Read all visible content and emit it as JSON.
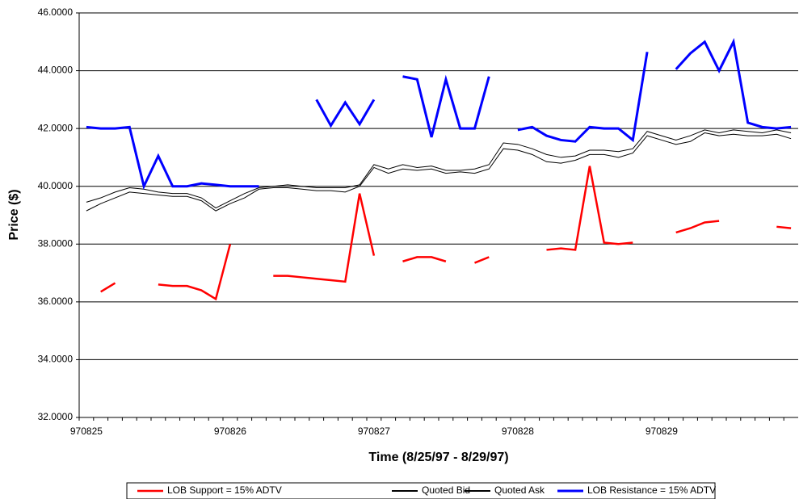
{
  "chart_data": {
    "type": "line",
    "x_label": "Time (8/25/97 - 8/29/97)",
    "y_label": "Price ($)",
    "categories": [
      "970825",
      null,
      null,
      null,
      null,
      null,
      null,
      null,
      null,
      null,
      "970826",
      null,
      null,
      null,
      null,
      null,
      null,
      null,
      null,
      null,
      "970827",
      null,
      null,
      null,
      null,
      null,
      null,
      null,
      null,
      null,
      "970828",
      null,
      null,
      null,
      null,
      null,
      null,
      null,
      null,
      null,
      "970829",
      null,
      null,
      null,
      null,
      null,
      null,
      null,
      null,
      null
    ],
    "ylim": [
      32,
      46
    ],
    "yticks": [
      {
        "value": 32,
        "label": "32.0000"
      },
      {
        "value": 34,
        "label": "34.0000"
      },
      {
        "value": 36,
        "label": "36.0000"
      },
      {
        "value": 38,
        "label": "38.0000"
      },
      {
        "value": 40,
        "label": "40.0000"
      },
      {
        "value": 42,
        "label": "42.0000"
      },
      {
        "value": 44,
        "label": "44.0000"
      },
      {
        "value": 46,
        "label": "46.0000"
      }
    ],
    "grid": true,
    "legend": "bottom",
    "series": [
      {
        "name": "LOB Support = 15% ADTV",
        "color": "#ff0000",
        "width": 2.5,
        "values": [
          null,
          36.35,
          36.65,
          null,
          null,
          36.6,
          36.55,
          36.55,
          36.4,
          36.1,
          38.0,
          null,
          null,
          36.9,
          36.9,
          36.85,
          36.8,
          36.75,
          36.7,
          39.75,
          37.6,
          null,
          37.4,
          37.55,
          37.55,
          37.4,
          null,
          37.35,
          37.55,
          null,
          null,
          null,
          37.8,
          37.85,
          37.8,
          40.7,
          38.05,
          38.0,
          38.05,
          null,
          null,
          38.4,
          38.55,
          38.75,
          38.8,
          null,
          null,
          null,
          38.6,
          38.55
        ]
      },
      {
        "name": "Quoted Bid",
        "color": "#000000",
        "width": 1,
        "values": [
          39.15,
          39.4,
          39.6,
          39.8,
          39.75,
          39.7,
          39.65,
          39.65,
          39.5,
          39.15,
          39.4,
          39.6,
          39.9,
          39.95,
          39.95,
          39.9,
          39.85,
          39.85,
          39.8,
          40.0,
          40.65,
          40.45,
          40.6,
          40.55,
          40.6,
          40.45,
          40.5,
          40.45,
          40.6,
          41.3,
          41.25,
          41.1,
          40.85,
          40.8,
          40.9,
          41.1,
          41.1,
          41.0,
          41.15,
          41.75,
          41.6,
          41.45,
          41.55,
          41.85,
          41.75,
          41.8,
          41.75,
          41.75,
          41.8,
          41.65
        ]
      },
      {
        "name": "Quoted Ask",
        "color": "#000000",
        "width": 1,
        "values": [
          39.45,
          39.6,
          39.8,
          39.95,
          39.9,
          39.8,
          39.75,
          39.75,
          39.6,
          39.25,
          39.5,
          39.75,
          39.95,
          40.0,
          40.05,
          40.0,
          39.95,
          39.95,
          39.95,
          40.05,
          40.75,
          40.6,
          40.75,
          40.65,
          40.7,
          40.55,
          40.55,
          40.6,
          40.75,
          41.5,
          41.45,
          41.3,
          41.1,
          41.0,
          41.05,
          41.25,
          41.25,
          41.2,
          41.3,
          41.9,
          41.75,
          41.6,
          41.75,
          41.95,
          41.85,
          41.95,
          41.9,
          41.85,
          41.95,
          41.85
        ]
      },
      {
        "name": "LOB Resistance = 15% ADTV",
        "color": "#0000ff",
        "width": 3,
        "values": [
          42.05,
          42.0,
          42.0,
          42.05,
          40.0,
          41.05,
          40.0,
          40.0,
          40.1,
          40.05,
          40.0,
          40.0,
          40.0,
          null,
          null,
          null,
          43.0,
          42.1,
          42.9,
          42.15,
          43.0,
          null,
          43.8,
          43.7,
          41.7,
          43.7,
          42.0,
          42.0,
          43.8,
          null,
          41.95,
          42.05,
          41.75,
          41.6,
          41.55,
          42.05,
          42.0,
          42.0,
          41.6,
          44.65,
          null,
          44.05,
          44.6,
          45.0,
          44.0,
          45.0,
          42.2,
          42.05,
          42.0,
          42.05
        ]
      }
    ]
  }
}
